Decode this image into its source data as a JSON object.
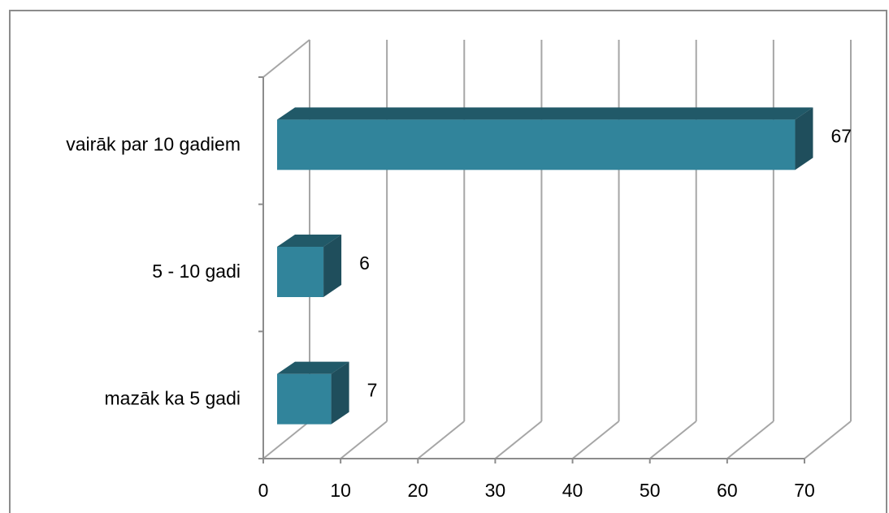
{
  "chart_data": {
    "type": "bar",
    "orientation": "horizontal",
    "style": "3d",
    "categories": [
      "mazāk ka 5 gadi",
      "5 - 10 gadi",
      "vairāk par 10 gadiem"
    ],
    "values": [
      7,
      6,
      67
    ],
    "data_labels": [
      "7",
      "6",
      "67"
    ],
    "xlim": [
      0,
      70
    ],
    "x_ticks": [
      0,
      10,
      20,
      30,
      40,
      50,
      60,
      70
    ],
    "x_tick_labels": [
      "0",
      "10",
      "20",
      "30",
      "40",
      "50",
      "60",
      "70"
    ],
    "grid": true,
    "legend": "none",
    "colors": {
      "bar_front": "#31849b",
      "bar_top": "#215968",
      "bar_side": "#1f4e5c",
      "gridline": "#a6a6a6",
      "frame": "#8c8c8c"
    }
  }
}
